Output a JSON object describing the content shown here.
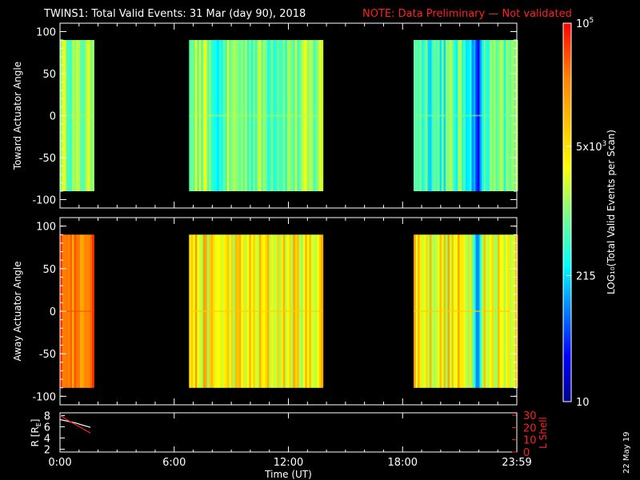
{
  "title": {
    "main": "TWINS1: Total Valid Events: 31 Mar (day  90), 2018",
    "note": "NOTE: Data Preliminary — Not validated"
  },
  "date_stamp": "22 May 19",
  "colors": {
    "background": "#000000",
    "note": "#ff2020",
    "orbit_line": "#ff2020",
    "frame": "#ffffff"
  },
  "chart_data": [
    {
      "type": "heatmap",
      "panel": "toward",
      "ylabel": "Toward Actuator Angle",
      "ylim": [
        -110,
        110
      ],
      "yticks": [
        100,
        50,
        0,
        -50,
        -100
      ],
      "xlim_hours": [
        0,
        24
      ],
      "data_ylim": [
        -90,
        90
      ],
      "segments": [
        {
          "start": "00:00",
          "end": "01:43",
          "start_h": 0.0,
          "end_h": 1.72,
          "level": 0.5,
          "variation": 0.08
        },
        {
          "start": "06:47",
          "end": "13:47",
          "start_h": 6.78,
          "end_h": 13.78,
          "level": 0.5,
          "variation": 0.12
        },
        {
          "start": "18:35",
          "end": "23:59",
          "start_h": 18.58,
          "end_h": 23.98,
          "level": 0.45,
          "variation": 0.12
        }
      ],
      "features": [
        {
          "name": "low_count_band",
          "start_h": 7.8,
          "end_h": 8.6,
          "level": 0.32
        },
        {
          "name": "low_count_band",
          "start_h": 21.5,
          "end_h": 22.3,
          "level": 0.12
        }
      ]
    },
    {
      "type": "heatmap",
      "panel": "away",
      "ylabel": "Away Actuator Angle",
      "ylim": [
        -110,
        110
      ],
      "yticks": [
        100,
        50,
        0,
        -50,
        -100
      ],
      "xlim_hours": [
        0,
        24
      ],
      "data_ylim": [
        -90,
        90
      ],
      "segments": [
        {
          "start": "00:00",
          "end": "01:43",
          "start_h": 0.0,
          "end_h": 1.72,
          "level": 0.75,
          "variation": 0.05
        },
        {
          "start": "06:47",
          "end": "13:47",
          "start_h": 6.78,
          "end_h": 13.78,
          "level": 0.62,
          "variation": 0.1
        },
        {
          "start": "18:35",
          "end": "23:59",
          "start_h": 18.58,
          "end_h": 23.98,
          "level": 0.62,
          "variation": 0.1
        }
      ],
      "features": [
        {
          "name": "low_count_band",
          "start_h": 21.6,
          "end_h": 22.2,
          "level": 0.2
        }
      ]
    },
    {
      "type": "colorbar",
      "label": "LOG₁₀(Total Valid Events per Scan)",
      "scale": "log",
      "range": [
        10,
        100000
      ],
      "tick_labels": [
        {
          "value": 100000,
          "label_base": "10",
          "label_exp": "5"
        },
        {
          "value": 5000,
          "label_base": "5x10",
          "label_exp": "3"
        },
        {
          "value": 215,
          "label_base": "215",
          "label_exp": ""
        },
        {
          "value": 10,
          "label_base": "10",
          "label_exp": ""
        }
      ]
    },
    {
      "type": "line",
      "panel": "orbit",
      "left_ylabel": "R [R",
      "left_ylabel_sub": "E",
      "left_yticks": [
        8,
        6,
        4,
        2
      ],
      "left_ylim": [
        1.5,
        8.5
      ],
      "right_ylabel": "L Shell",
      "right_yticks": [
        30,
        20,
        10,
        0
      ],
      "right_ylim": [
        0,
        32
      ],
      "xlabel": "Time (UT)",
      "xticks": [
        "0:00",
        "6:00",
        "12:00",
        "18:00",
        "23:59"
      ],
      "xtick_hours": [
        0,
        6,
        12,
        18,
        24
      ],
      "series": [
        {
          "axis": "left",
          "color": "#ffffff",
          "x": [
            0.0,
            0.4,
            0.8,
            1.2,
            1.6
          ],
          "y": [
            7.3,
            7.0,
            6.7,
            6.3,
            5.9
          ]
        },
        {
          "axis": "right",
          "color": "#ff2020",
          "x": [
            0.0,
            0.4,
            0.8,
            1.2,
            1.6
          ],
          "y": [
            30.0,
            26.0,
            22.5,
            19.0,
            15.5
          ]
        }
      ]
    }
  ]
}
